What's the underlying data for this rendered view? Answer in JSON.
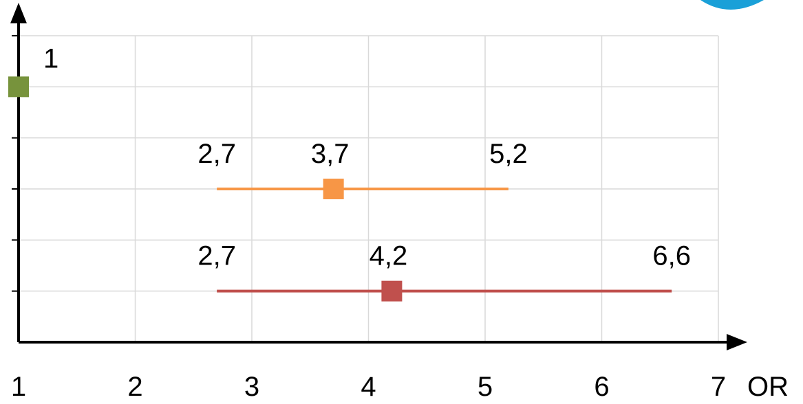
{
  "chart_data": {
    "type": "scatter",
    "title": "",
    "xlabel": "OR",
    "ylabel": "",
    "xlim": [
      1,
      7
    ],
    "ylim": [
      0,
      6
    ],
    "x_ticks": [
      "1",
      "2",
      "3",
      "4",
      "5",
      "6",
      "7"
    ],
    "grid": true,
    "legend": "none",
    "series": [
      {
        "color": "#77933c",
        "point": {
          "x": 1,
          "y": 5
        },
        "labels": {
          "point": "1"
        }
      },
      {
        "color": "#f79646",
        "point": {
          "x": 3.7,
          "y": 3
        },
        "ci": [
          2.7,
          5.2
        ],
        "labels": {
          "low": "2,7",
          "point": "3,7",
          "high": "5,2"
        }
      },
      {
        "color": "#c0504d",
        "point": {
          "x": 4.2,
          "y": 1
        },
        "ci": [
          2.7,
          6.6
        ],
        "labels": {
          "low": "2,7",
          "point": "4,2",
          "high": "6,6"
        }
      }
    ]
  }
}
